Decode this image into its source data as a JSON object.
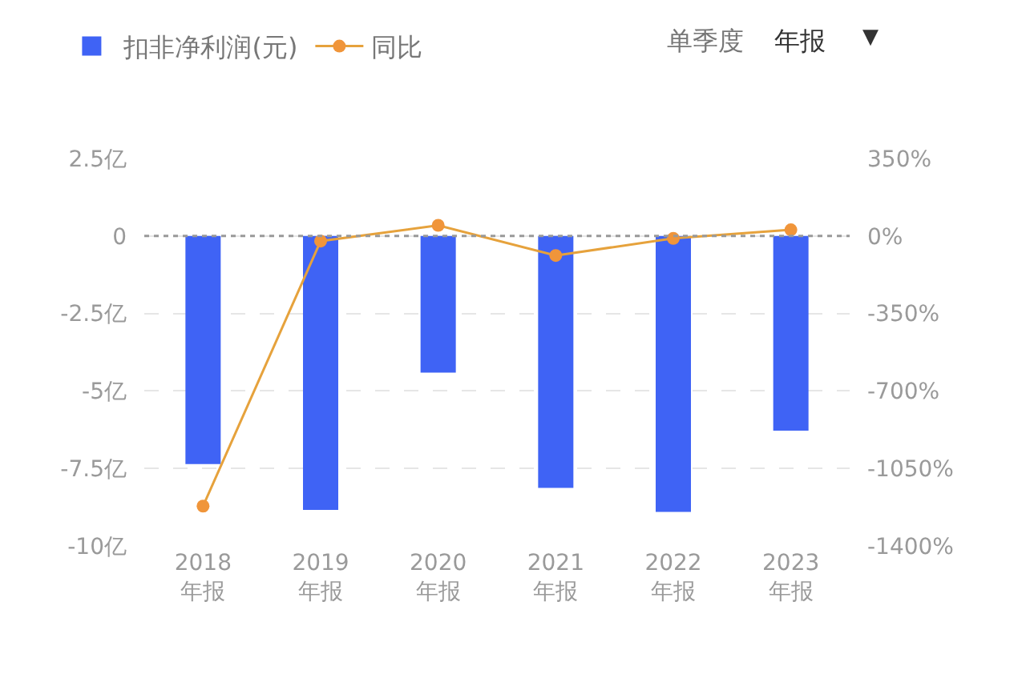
{
  "chart_data": {
    "type": "bar",
    "categories": [
      "2018\n年报",
      "2019\n年报",
      "2020\n年报",
      "2021\n年报",
      "2022\n年报",
      "2023\n年报"
    ],
    "series": [
      {
        "name": "扣非净利润(元)",
        "color": "#3f63f5",
        "values": [
          -7.36,
          -8.84,
          -4.41,
          -8.13,
          -8.9,
          -6.28
        ]
      },
      {
        "name": "同比",
        "type": "line",
        "axis": "y2",
        "color": "#e6a23c",
        "marker": "circle",
        "values": [
          -1220,
          -23,
          48,
          -88,
          -11,
          28
        ]
      }
    ],
    "ylim": [
      -10,
      2.5
    ],
    "yticks": [
      {
        "value": 2.5,
        "label": "2.5亿"
      },
      0,
      {
        "value": -2.5,
        "label": "-2.5亿"
      },
      {
        "value": -5,
        "label": "-5亿"
      },
      {
        "value": -7.5,
        "label": "-7.5亿"
      },
      {
        "value": -10,
        "label": "-10亿"
      }
    ],
    "y2lim": [
      -1400,
      350
    ],
    "y2ticks": [
      {
        "value": 350,
        "label": "350%"
      },
      {
        "value": 0,
        "label": "0%"
      },
      {
        "value": -350,
        "label": "-350%"
      },
      {
        "value": -700,
        "label": "-700%"
      },
      {
        "value": -1050,
        "label": "-1050%"
      },
      {
        "value": -1400,
        "label": "-1400%"
      }
    ],
    "ref_lines": [
      {
        "axis": "y",
        "value": 0,
        "color": "#999999",
        "line_style": "dotted"
      }
    ],
    "annotations": [
      "单季度",
      "年报",
      "▼"
    ],
    "grid": "y",
    "legend": "top left"
  }
}
